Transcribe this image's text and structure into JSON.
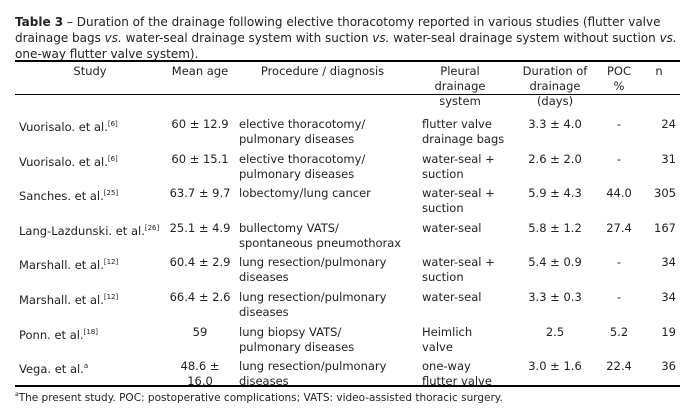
{
  "caption": {
    "label": "Table 3",
    "dash": " – ",
    "text_1": "Duration of the drainage following elective thoracotomy reported in various studies (flutter valve drainage bags ",
    "vs1": "vs.",
    "text_2": " water-seal drainage system with suction ",
    "vs2": "vs.",
    "text_3": " water-seal drainage system without suction ",
    "vs3": "vs.",
    "text_4": " one-way flutter valve system)."
  },
  "columns": [
    "Study",
    "Mean age",
    "Procedure / diagnosis",
    "Pleural drainage system",
    "Duration of drainage (days)",
    "POC %",
    "n"
  ],
  "rows": [
    {
      "study": "Vuorisalo. et al.",
      "ref": "[6]",
      "age": "60 ± 12.9",
      "procedure": "elective thoracotomy/ pulmonary diseases",
      "system": "flutter valve drainage bags",
      "duration": "3.3 ± 4.0",
      "poc": "-",
      "n": "24"
    },
    {
      "study": "Vuorisalo. et al.",
      "ref": "[6]",
      "age": "60 ± 15.1",
      "procedure": "elective thoracotomy/ pulmonary diseases",
      "system": "water-seal + suction",
      "duration": "2.6 ± 2.0",
      "poc": "-",
      "n": "31"
    },
    {
      "study": "Sanches. et al.",
      "ref": "[25]",
      "age": "63.7 ± 9.7",
      "procedure": "lobectomy/lung cancer",
      "system": "water-seal + suction",
      "duration": "5.9 ± 4.3",
      "poc": "44.0",
      "n": "305"
    },
    {
      "study": "Lang-Lazdunski. et al.",
      "ref": "[26]",
      "age": "25.1 ± 4.9",
      "procedure": "bullectomy VATS/ spontaneous pneumothorax",
      "system": "water-seal",
      "duration": "5.8 ± 1.2",
      "poc": "27.4",
      "n": "167"
    },
    {
      "study": "Marshall. et al.",
      "ref": "[12]",
      "age": "60.4 ± 2.9",
      "procedure": "lung resection/pulmonary diseases",
      "system": "water-seal + suction",
      "duration": "5.4 ± 0.9",
      "poc": "-",
      "n": "34"
    },
    {
      "study": "Marshall. et al.",
      "ref": "[12]",
      "age": "66.4 ± 2.6",
      "procedure": "lung resection/pulmonary diseases",
      "system": "water-seal",
      "duration": "3.3 ± 0.3",
      "poc": "-",
      "n": "34"
    },
    {
      "study": "Ponn. et al.",
      "ref": "[18]",
      "age": "59",
      "procedure": "lung biopsy VATS/ pulmonary diseases",
      "system": "Heimlich valve",
      "duration": "2.5",
      "poc": "5.2",
      "n": "19"
    },
    {
      "study": "Vega. et al.",
      "ref": "a",
      "age": "48.6 ± 16.0",
      "procedure": "lung resection/pulmonary diseases",
      "system": "one-way flutter valve",
      "duration": "3.0 ± 1.6",
      "poc": "22.4",
      "n": "36"
    }
  ],
  "footnote": {
    "mark": "a",
    "text": "The present study. POC: postoperative complications; VATS: video-assisted thoracic surgery."
  }
}
